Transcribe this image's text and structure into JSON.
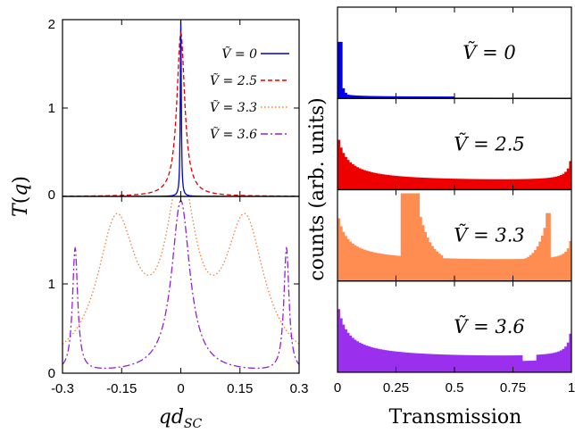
{
  "chart_data": [
    {
      "type": "line",
      "panel": "left-top",
      "ylabel": "T(q)",
      "xlim": [
        -0.3,
        0.3
      ],
      "ylim": [
        0,
        2
      ],
      "y_ticks": [
        "0",
        "1",
        "2"
      ],
      "legend_position": "top-right",
      "series": [
        {
          "name": "Ṽ = 0",
          "color": "#0000cc",
          "style": "solid",
          "peaks": [
            {
              "x": 0.0,
              "height": 2.0,
              "width": 0.0015
            }
          ]
        },
        {
          "name": "Ṽ = 2.5",
          "color": "#dd0000",
          "style": "dashed",
          "peaks": [
            {
              "x": 0.0,
              "height": 1.85,
              "width": 0.012
            }
          ]
        },
        {
          "name": "Ṽ = 3.3",
          "color": "#f08040",
          "style": "dotted",
          "peaks": []
        },
        {
          "name": "Ṽ = 3.6",
          "color": "#9020e0",
          "style": "dashdot",
          "peaks": []
        }
      ]
    },
    {
      "type": "line",
      "panel": "left-bottom",
      "xlabel": "qd_SC",
      "xlim": [
        -0.3,
        0.3
      ],
      "ylim": [
        0,
        1.5
      ],
      "x_ticks": [
        "-0.3",
        "-0.15",
        "0",
        "0.15",
        "0.3"
      ],
      "y_ticks": [
        "0",
        "1"
      ],
      "series": [
        {
          "name": "Ṽ = 3.3",
          "color": "#f08040",
          "style": "dotted",
          "peaks": [
            {
              "x": -0.163,
              "height": 1.6,
              "width": 0.06
            },
            {
              "x": 0.163,
              "height": 1.6,
              "width": 0.06
            },
            {
              "x": 0.0,
              "height": 1.9,
              "width": 0.045
            }
          ]
        },
        {
          "name": "Ṽ = 3.6",
          "color": "#9020e0",
          "style": "dashdot",
          "peaks": [
            {
              "x": -0.268,
              "height": 1.38,
              "width": 0.008
            },
            {
              "x": 0.268,
              "height": 1.38,
              "width": 0.008
            },
            {
              "x": 0.0,
              "height": 1.93,
              "width": 0.028
            }
          ]
        }
      ]
    },
    {
      "type": "bar",
      "panel": "right-stack",
      "xlabel": "Transmission",
      "ylabel": "counts (arb. units)",
      "xlim": [
        0,
        1
      ],
      "x_ticks": [
        "0",
        "0.25",
        "0.5",
        "0.75",
        "1"
      ],
      "bins": 100,
      "series": [
        {
          "name": "Ṽ = 0",
          "label_tex": "Ṽ = 0",
          "color": "#0000ee",
          "u_shape": [
            0.2,
            0.0,
            0.0
          ],
          "features": [
            {
              "x": 0.005,
              "h": 1.0
            },
            {
              "x": 0.015,
              "h": 0.18
            },
            {
              "x": 0.025,
              "h": 0.1
            }
          ]
        },
        {
          "name": "Ṽ = 2.5",
          "label_tex": "Ṽ = 2.5",
          "color": "#ee0000",
          "u_shape": [
            0.85,
            0.12,
            0.5
          ],
          "features": []
        },
        {
          "name": "Ṽ = 3.3",
          "label_tex": "Ṽ = 3.3",
          "color": "#ff8c50",
          "u_shape": [
            0.88,
            0.32,
            0.5
          ],
          "features": [
            {
              "x": 0.28,
              "h": 1.5
            },
            {
              "x": 0.35,
              "h": 1.1
            },
            {
              "x": 0.9,
              "h": 1.2
            }
          ]
        },
        {
          "name": "Ṽ = 3.6",
          "label_tex": "Ṽ = 3.6",
          "color": "#9a30ee",
          "u_shape": [
            1.0,
            0.22,
            0.6
          ],
          "features": [
            {
              "x": 0.79,
              "h": -0.1
            }
          ]
        }
      ]
    }
  ]
}
